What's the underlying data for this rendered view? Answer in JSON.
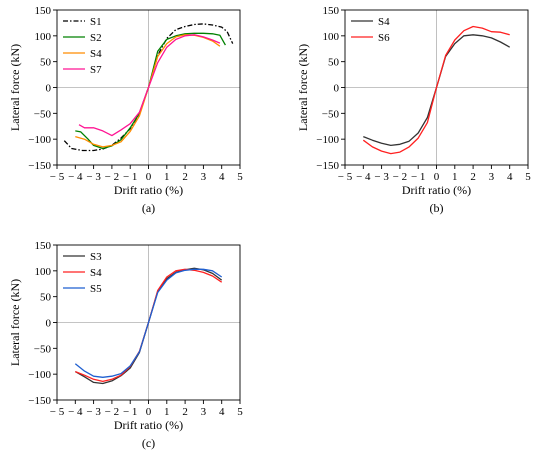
{
  "chart_data": [
    {
      "type": "line",
      "panel_label": "(a)",
      "xlabel": "Drift ratio (%)",
      "ylabel": "Lateral force (kN)",
      "xlim": [
        -5,
        5
      ],
      "ylim": [
        -150,
        150
      ],
      "xticks": [
        -5,
        -4,
        -3,
        -2,
        -1,
        0,
        1,
        2,
        3,
        4,
        5
      ],
      "yticks": [
        -150,
        -100,
        -50,
        0,
        50,
        100,
        150
      ],
      "legend_position": "top-left",
      "series": [
        {
          "name": "S1",
          "color": "#000000",
          "dash": "dashdot",
          "x": [
            -4.6,
            -4.2,
            -3.6,
            -3.0,
            -2.5,
            -2.0,
            -1.5,
            -1.0,
            -0.5,
            0,
            0.5,
            1.0,
            1.5,
            2.0,
            2.5,
            3.0,
            3.5,
            4.0,
            4.3,
            4.6
          ],
          "y": [
            -103,
            -118,
            -122,
            -122,
            -119,
            -112,
            -98,
            -80,
            -50,
            0,
            62,
            95,
            112,
            118,
            122,
            123,
            121,
            117,
            108,
            85
          ]
        },
        {
          "name": "S2",
          "color": "#008000",
          "dash": "solid",
          "x": [
            -4.0,
            -3.7,
            -3.3,
            -3.0,
            -2.5,
            -2.0,
            -1.5,
            -1.0,
            -0.5,
            0,
            0.5,
            1.0,
            1.5,
            2.0,
            2.5,
            3.0,
            3.5,
            3.9,
            4.2
          ],
          "y": [
            -84,
            -86,
            -100,
            -112,
            -118,
            -113,
            -101,
            -78,
            -50,
            0,
            70,
            93,
            100,
            104,
            105,
            105,
            104,
            101,
            82
          ]
        },
        {
          "name": "S4",
          "color": "#ff8c00",
          "dash": "solid",
          "x": [
            -4.0,
            -3.5,
            -3.0,
            -2.5,
            -2.0,
            -1.5,
            -1.0,
            -0.5,
            0,
            0.5,
            1.0,
            1.5,
            2.0,
            2.5,
            3.0,
            3.5,
            3.9
          ],
          "y": [
            -95,
            -100,
            -110,
            -115,
            -112,
            -105,
            -85,
            -55,
            0,
            60,
            85,
            98,
            102,
            101,
            97,
            90,
            80
          ]
        },
        {
          "name": "S7",
          "color": "#ff1493",
          "dash": "solid",
          "x": [
            -3.8,
            -3.5,
            -3.0,
            -2.5,
            -2.0,
            -1.5,
            -1.0,
            -0.5,
            0,
            0.5,
            1.0,
            1.5,
            2.0,
            2.5,
            3.0,
            3.5,
            3.9
          ],
          "y": [
            -72,
            -78,
            -78,
            -84,
            -93,
            -82,
            -70,
            -48,
            0,
            48,
            78,
            93,
            100,
            102,
            98,
            92,
            86
          ]
        }
      ]
    },
    {
      "type": "line",
      "panel_label": "(b)",
      "xlabel": "Drift ratio (%)",
      "ylabel": "Lateral force (kN)",
      "xlim": [
        -5,
        5
      ],
      "ylim": [
        -150,
        150
      ],
      "xticks": [
        -5,
        -4,
        -3,
        -2,
        -1,
        0,
        1,
        2,
        3,
        4,
        5
      ],
      "yticks": [
        -150,
        -100,
        -50,
        0,
        50,
        100,
        150
      ],
      "legend_position": "top-left",
      "series": [
        {
          "name": "S4",
          "color": "#333333",
          "dash": "solid",
          "x": [
            -4.0,
            -3.5,
            -3.0,
            -2.5,
            -2.0,
            -1.5,
            -1.0,
            -0.5,
            0,
            0.5,
            1.0,
            1.5,
            2.0,
            2.5,
            3.0,
            3.5,
            4.0
          ],
          "y": [
            -95,
            -102,
            -108,
            -112,
            -110,
            -104,
            -88,
            -58,
            0,
            60,
            85,
            100,
            102,
            100,
            96,
            88,
            78
          ]
        },
        {
          "name": "S6",
          "color": "#ff2020",
          "dash": "solid",
          "x": [
            -4.0,
            -3.5,
            -3.0,
            -2.5,
            -2.0,
            -1.5,
            -1.0,
            -0.5,
            0,
            0.5,
            1.0,
            1.5,
            2.0,
            2.5,
            3.0,
            3.5,
            4.0
          ],
          "y": [
            -102,
            -115,
            -123,
            -128,
            -125,
            -115,
            -98,
            -68,
            0,
            62,
            92,
            110,
            118,
            115,
            108,
            107,
            102
          ]
        }
      ]
    },
    {
      "type": "line",
      "panel_label": "(c)",
      "xlabel": "Drift ratio (%)",
      "ylabel": "Lateral force (kN)",
      "xlim": [
        -5,
        5
      ],
      "ylim": [
        -150,
        150
      ],
      "xticks": [
        -5,
        -4,
        -3,
        -2,
        -1,
        0,
        1,
        2,
        3,
        4,
        5
      ],
      "yticks": [
        -150,
        -100,
        -50,
        0,
        50,
        100,
        150
      ],
      "legend_position": "top-left",
      "series": [
        {
          "name": "S3",
          "color": "#333333",
          "dash": "solid",
          "x": [
            -4.0,
            -3.5,
            -3.0,
            -2.5,
            -2.0,
            -1.5,
            -1.0,
            -0.5,
            0,
            0.5,
            1.0,
            1.5,
            2.0,
            2.5,
            3.0,
            3.5,
            4.0
          ],
          "y": [
            -95,
            -105,
            -116,
            -118,
            -113,
            -103,
            -88,
            -58,
            0,
            60,
            85,
            97,
            102,
            105,
            102,
            95,
            82
          ]
        },
        {
          "name": "S4",
          "color": "#ff2020",
          "dash": "solid",
          "x": [
            -4.0,
            -3.5,
            -3.0,
            -2.5,
            -2.0,
            -1.5,
            -1.0,
            -0.5,
            0,
            0.5,
            1.0,
            1.5,
            2.0,
            2.5,
            3.0,
            3.5,
            4.0
          ],
          "y": [
            -95,
            -102,
            -110,
            -114,
            -110,
            -102,
            -85,
            -56,
            0,
            62,
            88,
            100,
            103,
            101,
            97,
            90,
            78
          ]
        },
        {
          "name": "S5",
          "color": "#1f5fd0",
          "dash": "solid",
          "x": [
            -4.0,
            -3.5,
            -3.0,
            -2.5,
            -2.0,
            -1.5,
            -1.0,
            -0.5,
            0,
            0.5,
            1.0,
            1.5,
            2.0,
            2.5,
            3.0,
            3.5,
            4.0
          ],
          "y": [
            -80,
            -94,
            -104,
            -106,
            -104,
            -99,
            -84,
            -57,
            0,
            58,
            82,
            96,
            101,
            103,
            103,
            100,
            88
          ]
        }
      ]
    }
  ]
}
